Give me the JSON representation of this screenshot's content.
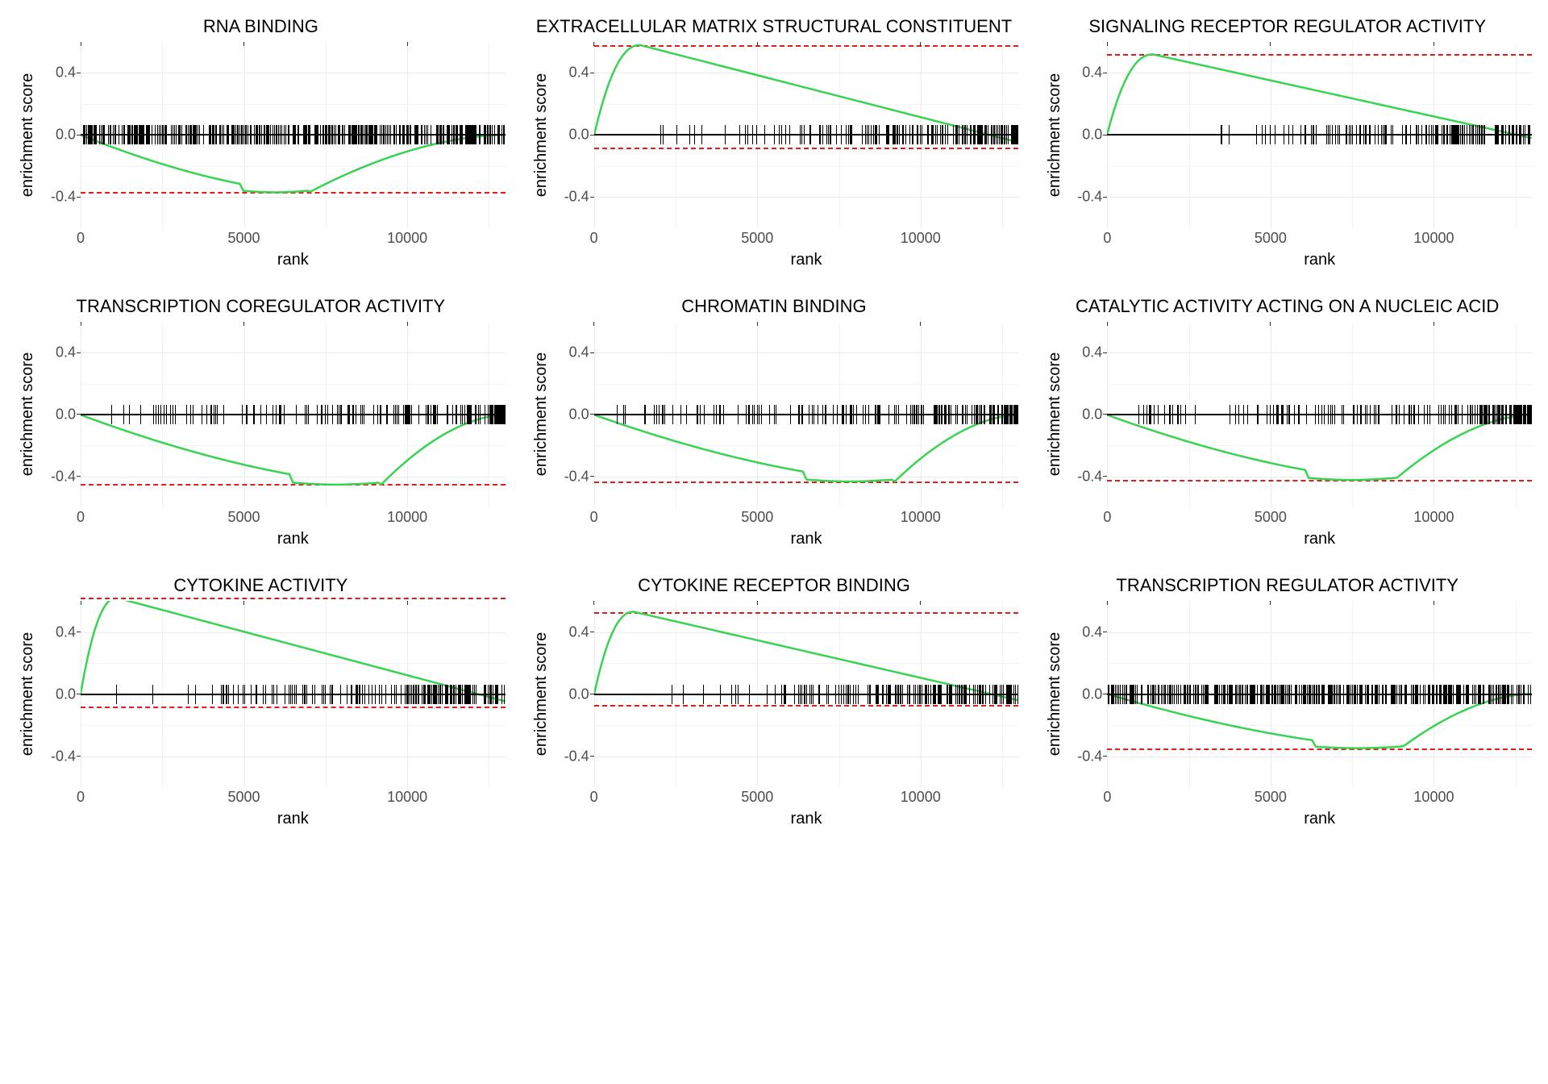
{
  "layout": {
    "rows": 3,
    "cols": 3
  },
  "axis": {
    "xlabel": "rank",
    "ylabel": "enrichment score",
    "xlim": [
      0,
      13000
    ],
    "ylim": [
      -0.6,
      0.6
    ],
    "xticks": [
      0,
      5000,
      10000
    ],
    "yticks": [
      -0.4,
      0.0,
      0.4
    ],
    "grid_color": "#ebebeb",
    "background": "#ffffff",
    "label_fontsize": 20,
    "tick_fontsize": 18,
    "title_fontsize": 22
  },
  "colors": {
    "curve": "#39d353",
    "dash": "#e41a1c",
    "zero": "#000000",
    "rug": "#000000"
  },
  "panels": [
    {
      "title": "RNA BINDING",
      "direction": "down",
      "peak": -0.37,
      "peak_rank": 7000,
      "dash_upper": null,
      "dash_lower": -0.37,
      "rug": "dense-uniform"
    },
    {
      "title": "EXTRACELLULAR MATRIX STRUCTURAL CONSTITUENT",
      "direction": "up",
      "peak": 0.58,
      "peak_rank": 1400,
      "dash_upper": 0.58,
      "dash_lower": -0.08,
      "rug": "front-loaded"
    },
    {
      "title": "SIGNALING RECEPTOR REGULATOR ACTIVITY",
      "direction": "up",
      "peak": 0.52,
      "peak_rank": 1400,
      "dash_upper": 0.52,
      "dash_lower": null,
      "rug": "front-loaded"
    },
    {
      "title": "TRANSCRIPTION COREGULATOR ACTIVITY",
      "direction": "down",
      "peak": -0.45,
      "peak_rank": 9200,
      "dash_upper": null,
      "dash_lower": -0.45,
      "rug": "back-loaded"
    },
    {
      "title": "CHROMATIN BINDING",
      "direction": "down",
      "peak": -0.43,
      "peak_rank": 9200,
      "dash_upper": null,
      "dash_lower": -0.43,
      "rug": "back-loaded"
    },
    {
      "title": "CATALYTIC ACTIVITY ACTING ON A NUCLEIC ACID",
      "direction": "down",
      "peak": -0.42,
      "peak_rank": 8800,
      "dash_upper": null,
      "dash_lower": -0.42,
      "rug": "back-loaded"
    },
    {
      "title": "CYTOKINE ACTIVITY",
      "direction": "up",
      "peak": 0.62,
      "peak_rank": 1100,
      "dash_upper": 0.62,
      "dash_lower": -0.08,
      "rug": "front-loaded"
    },
    {
      "title": "CYTOKINE RECEPTOR BINDING",
      "direction": "up",
      "peak": 0.53,
      "peak_rank": 1200,
      "dash_upper": 0.53,
      "dash_lower": -0.07,
      "rug": "front-loaded"
    },
    {
      "title": "TRANSCRIPTION REGULATOR ACTIVITY",
      "direction": "down",
      "peak": -0.35,
      "peak_rank": 9000,
      "dash_upper": null,
      "dash_lower": -0.35,
      "rug": "dense-uniform"
    }
  ]
}
